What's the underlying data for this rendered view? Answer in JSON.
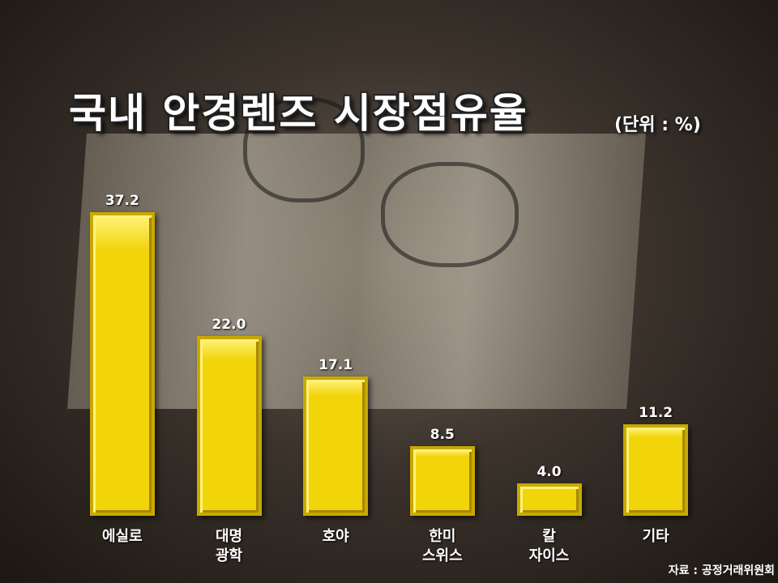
{
  "chart_data": {
    "type": "bar",
    "title": "국내 안경렌즈 시장점유율",
    "subtitle": "(단위 : %)",
    "categories": [
      "에실로",
      "대명\n광학",
      "호야",
      "한미\n스위스",
      "칼\n자이스",
      "기타"
    ],
    "values": [
      37.2,
      22,
      17.1,
      8.5,
      4,
      11.2
    ],
    "value_labels": [
      "37.2",
      "22.0",
      "17.1",
      "8.5",
      "4.0",
      "11.2"
    ],
    "color": "#f2d40a",
    "source": "자료 : 공정거래위원회"
  }
}
